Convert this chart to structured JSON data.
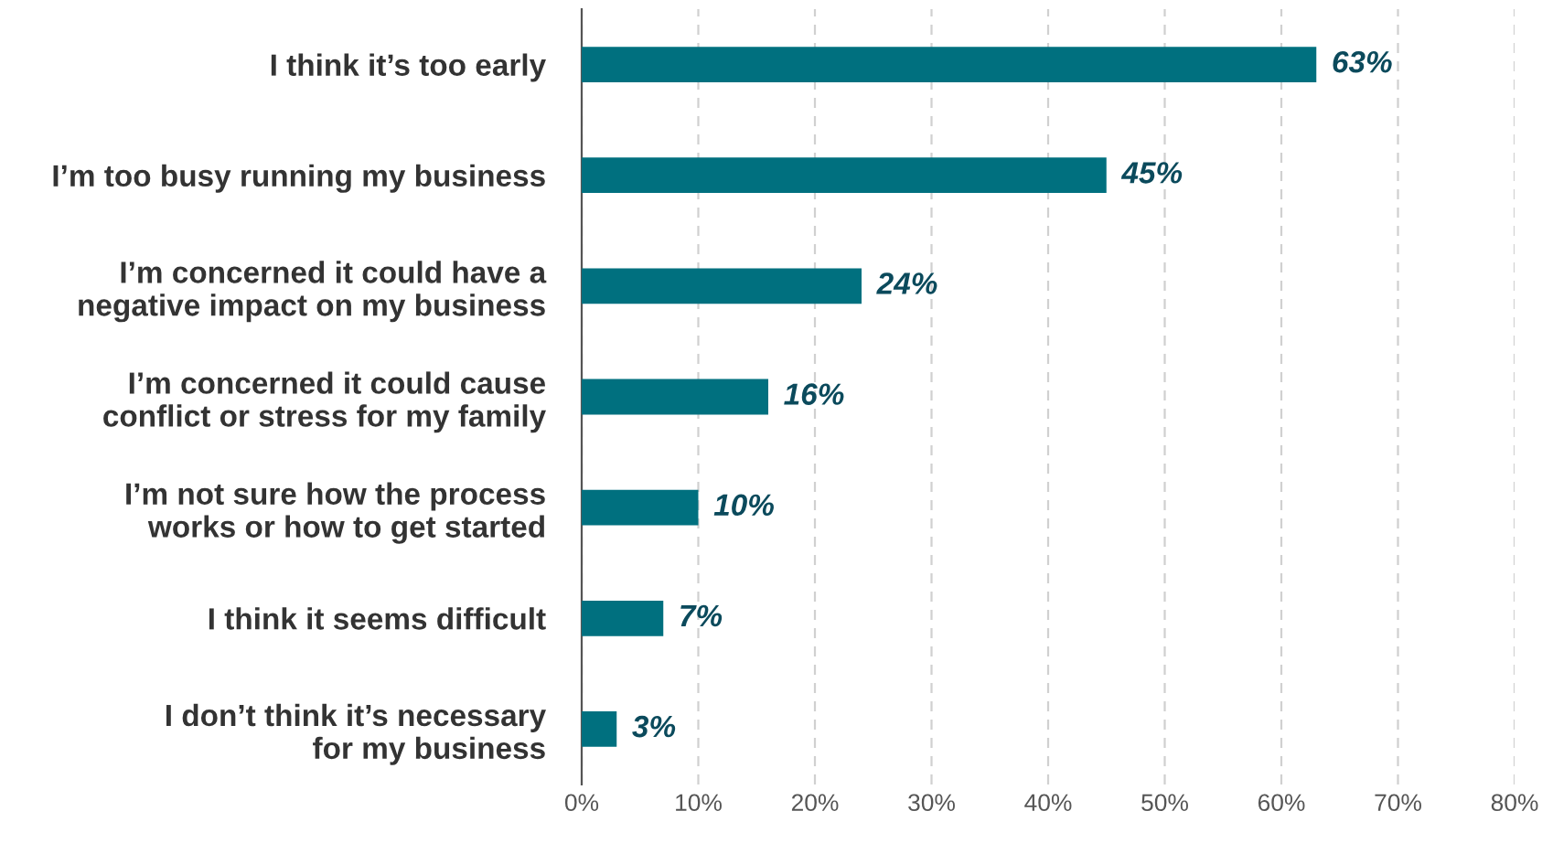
{
  "chart_data": {
    "type": "bar",
    "orientation": "horizontal",
    "categories": [
      "I think it’s too early",
      "I’m too busy running my business",
      "I’m concerned it could have a\nnegative impact on my business",
      "I’m concerned it could cause\nconflict or stress for my family",
      "I’m not sure how the process\nworks or how to get started",
      "I think it seems difficult",
      "I don’t think it’s necessary\nfor my business"
    ],
    "values": [
      63,
      45,
      24,
      16,
      10,
      7,
      3
    ],
    "value_labels": [
      "63%",
      "45%",
      "24%",
      "16%",
      "10%",
      "7%",
      "3%"
    ],
    "color": "#00707f",
    "xlim": [
      0,
      80
    ],
    "xticks": [
      {
        "value": 0,
        "label": "0%"
      },
      {
        "value": 10,
        "label": "10%"
      },
      {
        "value": 20,
        "label": "20%"
      },
      {
        "value": 30,
        "label": "30%"
      },
      {
        "value": 40,
        "label": "40%"
      },
      {
        "value": 50,
        "label": "50%"
      },
      {
        "value": 60,
        "label": "60%"
      },
      {
        "value": 70,
        "label": "70%"
      },
      {
        "value": 80,
        "label": "80%"
      }
    ],
    "grid": "x"
  }
}
